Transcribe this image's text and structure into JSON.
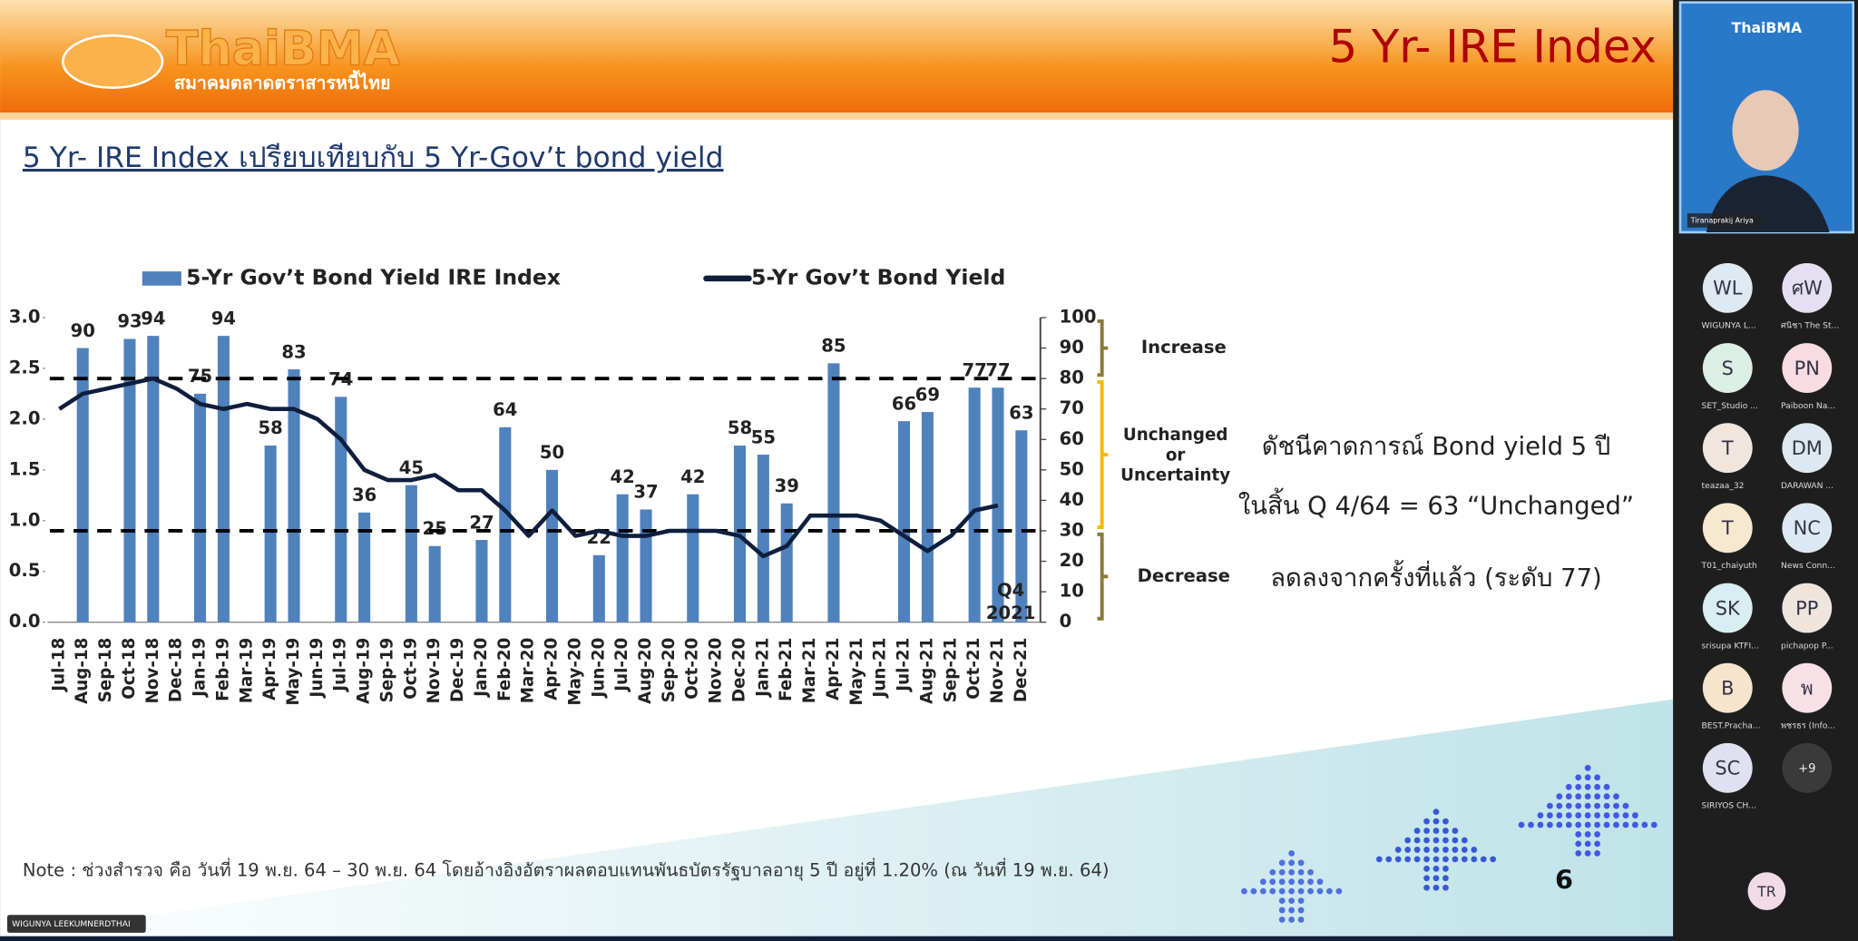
{
  "slide": {
    "logo": "ThaiBMA",
    "logo_subtitle": "สมาคมตลาดตราสารหนี้ไทย",
    "header_title": "5 Yr- IRE Index",
    "subtitle": "5 Yr- IRE Index เปรียบเทียบกับ 5 Yr-Gov’t bond yield",
    "summary": [
      "ดัชนีคาดการณ์ Bond yield 5 ปี",
      "ในสิ้น Q 4/64 = 63 “Unchanged”",
      "ลดลงจากครั้งที่แล้ว (ระดับ 77)"
    ],
    "note": "Note : ช่วงสำรวจ คือ วันที่ 19 พ.ย. 64 – 30 พ.ย. 64 โดยอ้างอิงอัตราผลตอบแทนพันธบัตรรัฐบาลอายุ 5 ปี อยู่ที่ 1.20% (ณ วันที่ 19 พ.ย. 64)",
    "page_number": "6"
  },
  "chart_data": {
    "type": "bar_line",
    "categories": [
      "Jul-18",
      "Aug-18",
      "Sep-18",
      "Oct-18",
      "Nov-18",
      "Dec-18",
      "Jan-19",
      "Feb-19",
      "Mar-19",
      "Apr-19",
      "May-19",
      "Jun-19",
      "Jul-19",
      "Aug-19",
      "Sep-19",
      "Oct-19",
      "Nov-19",
      "Dec-19",
      "Jan-20",
      "Feb-20",
      "Mar-20",
      "Apr-20",
      "May-20",
      "Jun-20",
      "Jul-20",
      "Aug-20",
      "Sep-20",
      "Oct-20",
      "Nov-20",
      "Dec-20",
      "Jan-21",
      "Feb-21",
      "Mar-21",
      "Apr-21",
      "May-21",
      "Jun-21",
      "Jul-21",
      "Aug-21",
      "Sep-21",
      "Oct-21",
      "Nov-21",
      "Dec-21"
    ],
    "series": [
      {
        "name": "5-Yr Gov’t Bond Yield IRE Index",
        "color": "#4f81bd",
        "axis": "y2",
        "values": [
          null,
          90,
          null,
          93,
          94,
          null,
          75,
          94,
          null,
          58,
          83,
          null,
          74,
          36,
          null,
          45,
          25,
          null,
          27,
          64,
          null,
          50,
          null,
          22,
          42,
          37,
          null,
          42,
          null,
          58,
          55,
          39,
          null,
          85,
          null,
          null,
          66,
          69,
          null,
          77,
          77,
          63
        ]
      },
      {
        "name": "5-Yr Gov’t Bond Yield",
        "color": "#0f1e3d",
        "axis": "y",
        "values": [
          2.1,
          2.25,
          2.3,
          2.35,
          2.4,
          2.3,
          2.15,
          2.1,
          2.15,
          2.1,
          2.1,
          2.0,
          1.8,
          1.5,
          1.4,
          1.4,
          1.45,
          1.3,
          1.3,
          1.1,
          0.85,
          1.1,
          0.85,
          0.9,
          0.85,
          0.85,
          0.9,
          0.9,
          0.9,
          0.85,
          0.65,
          0.75,
          1.05,
          1.05,
          1.05,
          1.0,
          0.85,
          0.7,
          0.85,
          1.1,
          1.15,
          null
        ]
      }
    ],
    "ylim": [
      0,
      3
    ],
    "yticks": [
      {
        "value": 0,
        "label": "0.0"
      },
      0.5,
      {
        "value": 1,
        "label": "1.0"
      },
      1.5,
      {
        "value": 2,
        "label": "2.0"
      },
      2.5,
      {
        "value": 3,
        "label": "3.0"
      }
    ],
    "y2lim": [
      0,
      100
    ],
    "y2ticks": [
      0,
      10,
      20,
      30,
      40,
      50,
      60,
      70,
      80,
      90,
      100
    ],
    "thresholds": [
      80,
      30
    ],
    "zones": [
      "Increase",
      [
        "Unchanged",
        "or",
        "Uncertainty"
      ],
      "Decrease"
    ],
    "annotation": [
      "Q4",
      "2021"
    ]
  },
  "meeting": {
    "presenter_tile_logo": "ThaiBMA",
    "presenter_name": "Tiranaprakij Ariya",
    "self_label": "WIGUNYA LEEKUMNERDTHAI",
    "participants": [
      {
        "initials": "WL",
        "name": "WIGUNYA L..."
      },
      {
        "initials": "ศW",
        "name": "ศนิชา The St..."
      },
      {
        "initials": "S",
        "name": "SET_Studio ..."
      },
      {
        "initials": "PN",
        "name": "Paiboon Na..."
      },
      {
        "initials": "T",
        "name": "teazaa_32"
      },
      {
        "initials": "DM",
        "name": "DARAWAN ..."
      },
      {
        "initials": "T",
        "name": "T01_chaiyuth"
      },
      {
        "initials": "NC",
        "name": "News Conn..."
      },
      {
        "initials": "SK",
        "name": "srisupa KTFI..."
      },
      {
        "initials": "PP",
        "name": "pichapop P..."
      },
      {
        "initials": "B",
        "name": "BEST.Pracha..."
      },
      {
        "initials": "พ",
        "name": "พชรธร (Info..."
      },
      {
        "initials": "SC",
        "name": "SIRIYOS CH..."
      }
    ],
    "more": "+9",
    "self_initials": "TR"
  }
}
